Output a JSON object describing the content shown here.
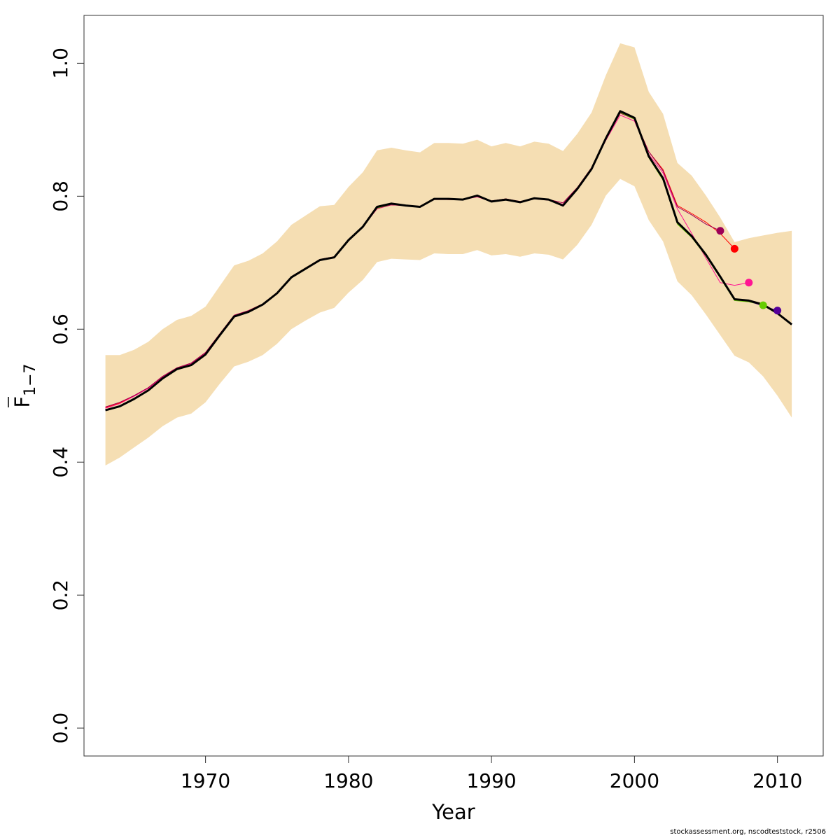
{
  "chart_data": {
    "type": "line",
    "title": "",
    "xlabel": "Year",
    "ylabel": "F",
    "ylabel_subscript": "1−7",
    "xlim": [
      1961.5,
      2013.2
    ],
    "ylim": [
      -0.042,
      1.072
    ],
    "xticks": [
      1970,
      1980,
      1990,
      2000,
      2010
    ],
    "yticks": [
      0.0,
      0.2,
      0.4,
      0.6,
      0.8,
      1.0
    ],
    "xtick_labels": [
      "1970",
      "1980",
      "1990",
      "2000",
      "2010"
    ],
    "ytick_labels": [
      "0.0",
      "0.2",
      "0.4",
      "0.6",
      "0.8",
      "1.0"
    ],
    "grid": false,
    "legend": "none",
    "band_color": "#f5deb3",
    "confidence_band": {
      "x": [
        1963,
        1964,
        1965,
        1966,
        1967,
        1968,
        1969,
        1970,
        1971,
        1972,
        1973,
        1974,
        1975,
        1976,
        1977,
        1978,
        1979,
        1980,
        1981,
        1982,
        1983,
        1984,
        1985,
        1986,
        1987,
        1988,
        1989,
        1990,
        1991,
        1992,
        1993,
        1994,
        1995,
        1996,
        1997,
        1998,
        1999,
        2000,
        2001,
        2002,
        2003,
        2004,
        2005,
        2006,
        2007,
        2008,
        2009,
        2010,
        2011
      ],
      "upper": [
        0.561,
        0.561,
        0.569,
        0.581,
        0.6,
        0.614,
        0.62,
        0.634,
        0.665,
        0.696,
        0.703,
        0.714,
        0.732,
        0.757,
        0.771,
        0.785,
        0.787,
        0.814,
        0.836,
        0.869,
        0.873,
        0.869,
        0.866,
        0.88,
        0.88,
        0.879,
        0.885,
        0.875,
        0.88,
        0.875,
        0.882,
        0.879,
        0.868,
        0.894,
        0.926,
        0.982,
        1.03,
        1.024,
        0.957,
        0.924,
        0.85,
        0.831,
        0.801,
        0.768,
        0.731,
        0.737,
        0.741,
        0.745,
        0.748
      ],
      "lower": [
        0.395,
        0.407,
        0.422,
        0.437,
        0.454,
        0.467,
        0.473,
        0.49,
        0.518,
        0.544,
        0.551,
        0.561,
        0.578,
        0.6,
        0.613,
        0.625,
        0.632,
        0.655,
        0.674,
        0.701,
        0.706,
        0.705,
        0.704,
        0.714,
        0.713,
        0.713,
        0.719,
        0.711,
        0.713,
        0.709,
        0.714,
        0.712,
        0.705,
        0.727,
        0.757,
        0.801,
        0.826,
        0.815,
        0.764,
        0.732,
        0.672,
        0.651,
        0.622,
        0.591,
        0.56,
        0.55,
        0.529,
        0.5,
        0.467
      ]
    },
    "series": [
      {
        "color": "#ff1493",
        "width": 1,
        "x": [
          1963,
          1964,
          1965,
          1966,
          1967,
          1968,
          1969,
          1970,
          1971,
          1972,
          1973,
          1974,
          1975,
          1976,
          1977,
          1978,
          1979,
          1980,
          1981,
          1982,
          1983,
          1984,
          1985,
          1986,
          1987,
          1988,
          1989,
          1990,
          1991,
          1992,
          1993,
          1994,
          1995,
          1996,
          1997,
          1998,
          1999,
          2000,
          2001,
          2002,
          2003,
          2004,
          2005,
          2006,
          2007,
          2008
        ],
        "y": [
          0.481,
          0.488,
          0.499,
          0.511,
          0.528,
          0.541,
          0.548,
          0.564,
          0.592,
          0.62,
          0.627,
          0.637,
          0.655,
          0.678,
          0.691,
          0.704,
          0.708,
          0.733,
          0.754,
          0.781,
          0.787,
          0.786,
          0.784,
          0.795,
          0.795,
          0.795,
          0.799,
          0.792,
          0.795,
          0.791,
          0.796,
          0.794,
          0.788,
          0.812,
          0.842,
          0.884,
          0.922,
          0.913,
          0.863,
          0.835,
          0.781,
          0.744,
          0.707,
          0.67,
          0.666,
          0.67
        ],
        "end_point": {
          "x": 2008,
          "y": 0.67
        }
      },
      {
        "color": "#ff0000",
        "width": 1,
        "x": [
          1963,
          1964,
          1965,
          1966,
          1967,
          1968,
          1969,
          1970,
          1971,
          1972,
          1973,
          1974,
          1975,
          1976,
          1977,
          1978,
          1979,
          1980,
          1981,
          1982,
          1983,
          1984,
          1985,
          1986,
          1987,
          1988,
          1989,
          1990,
          1991,
          1992,
          1993,
          1994,
          1995,
          1996,
          1997,
          1998,
          1999,
          2000,
          2001,
          2002,
          2003,
          2004,
          2005,
          2006,
          2007
        ],
        "y": [
          0.482,
          0.489,
          0.5,
          0.512,
          0.529,
          0.542,
          0.549,
          0.565,
          0.593,
          0.621,
          0.628,
          0.638,
          0.655,
          0.679,
          0.692,
          0.705,
          0.709,
          0.734,
          0.755,
          0.782,
          0.787,
          0.786,
          0.785,
          0.796,
          0.795,
          0.795,
          0.8,
          0.793,
          0.796,
          0.792,
          0.797,
          0.795,
          0.79,
          0.813,
          0.843,
          0.886,
          0.925,
          0.916,
          0.867,
          0.84,
          0.786,
          0.774,
          0.761,
          0.744,
          0.721
        ],
        "end_point": {
          "x": 2007,
          "y": 0.721
        }
      },
      {
        "color": "#9c0057",
        "width": 1,
        "x": [
          1963,
          1964,
          1965,
          1966,
          1967,
          1968,
          1969,
          1970,
          1971,
          1972,
          1973,
          1974,
          1975,
          1976,
          1977,
          1978,
          1979,
          1980,
          1981,
          1982,
          1983,
          1984,
          1985,
          1986,
          1987,
          1988,
          1989,
          1990,
          1991,
          1992,
          1993,
          1994,
          1995,
          1996,
          1997,
          1998,
          1999,
          2000,
          2001,
          2002,
          2003,
          2004,
          2005,
          2006
        ],
        "y": [
          0.483,
          0.49,
          0.5,
          0.512,
          0.529,
          0.542,
          0.549,
          0.565,
          0.593,
          0.621,
          0.628,
          0.638,
          0.655,
          0.679,
          0.692,
          0.705,
          0.709,
          0.734,
          0.755,
          0.782,
          0.787,
          0.786,
          0.785,
          0.796,
          0.795,
          0.795,
          0.8,
          0.793,
          0.796,
          0.792,
          0.797,
          0.795,
          0.79,
          0.813,
          0.843,
          0.886,
          0.925,
          0.916,
          0.867,
          0.838,
          0.784,
          0.772,
          0.758,
          0.748
        ],
        "end_point": {
          "x": 2006,
          "y": 0.748
        }
      },
      {
        "color": "#66cc00",
        "width": 1,
        "x": [
          1963,
          1964,
          1965,
          1966,
          1967,
          1968,
          1969,
          1970,
          1971,
          1972,
          1973,
          1974,
          1975,
          1976,
          1977,
          1978,
          1979,
          1980,
          1981,
          1982,
          1983,
          1984,
          1985,
          1986,
          1987,
          1988,
          1989,
          1990,
          1991,
          1992,
          1993,
          1994,
          1995,
          1996,
          1997,
          1998,
          1999,
          2000,
          2001,
          2002,
          2003,
          2004,
          2005,
          2006,
          2007,
          2008,
          2009
        ],
        "y": [
          0.478,
          0.484,
          0.495,
          0.508,
          0.526,
          0.54,
          0.546,
          0.562,
          0.591,
          0.619,
          0.626,
          0.637,
          0.654,
          0.678,
          0.691,
          0.704,
          0.708,
          0.734,
          0.754,
          0.782,
          0.788,
          0.786,
          0.784,
          0.796,
          0.796,
          0.795,
          0.801,
          0.792,
          0.795,
          0.791,
          0.797,
          0.795,
          0.787,
          0.811,
          0.841,
          0.887,
          0.926,
          0.916,
          0.858,
          0.824,
          0.758,
          0.738,
          0.71,
          0.677,
          0.643,
          0.641,
          0.636
        ],
        "end_point": {
          "x": 2009,
          "y": 0.636
        }
      },
      {
        "color": "#550099",
        "width": 1,
        "x": [
          1963,
          1964,
          1965,
          1966,
          1967,
          1968,
          1969,
          1970,
          1971,
          1972,
          1973,
          1974,
          1975,
          1976,
          1977,
          1978,
          1979,
          1980,
          1981,
          1982,
          1983,
          1984,
          1985,
          1986,
          1987,
          1988,
          1989,
          1990,
          1991,
          1992,
          1993,
          1994,
          1995,
          1996,
          1997,
          1998,
          1999,
          2000,
          2001,
          2002,
          2003,
          2004,
          2005,
          2006,
          2007,
          2008,
          2009,
          2010
        ],
        "y": [
          0.478,
          0.484,
          0.495,
          0.508,
          0.526,
          0.54,
          0.546,
          0.562,
          0.591,
          0.619,
          0.626,
          0.637,
          0.654,
          0.678,
          0.691,
          0.704,
          0.708,
          0.734,
          0.754,
          0.783,
          0.788,
          0.786,
          0.784,
          0.796,
          0.796,
          0.795,
          0.801,
          0.792,
          0.795,
          0.791,
          0.797,
          0.795,
          0.786,
          0.811,
          0.841,
          0.887,
          0.927,
          0.917,
          0.859,
          0.826,
          0.76,
          0.739,
          0.711,
          0.678,
          0.645,
          0.642,
          0.635,
          0.628
        ],
        "end_point": {
          "x": 2010,
          "y": 0.628
        }
      },
      {
        "color": "#000000",
        "width": 3,
        "x": [
          1963,
          1964,
          1965,
          1966,
          1967,
          1968,
          1969,
          1970,
          1971,
          1972,
          1973,
          1974,
          1975,
          1976,
          1977,
          1978,
          1979,
          1980,
          1981,
          1982,
          1983,
          1984,
          1985,
          1986,
          1987,
          1988,
          1989,
          1990,
          1991,
          1992,
          1993,
          1994,
          1995,
          1996,
          1997,
          1998,
          1999,
          2000,
          2001,
          2002,
          2003,
          2004,
          2005,
          2006,
          2007,
          2008,
          2009,
          2010,
          2011
        ],
        "y": [
          0.478,
          0.484,
          0.495,
          0.508,
          0.526,
          0.54,
          0.546,
          0.562,
          0.591,
          0.619,
          0.626,
          0.637,
          0.654,
          0.678,
          0.691,
          0.704,
          0.708,
          0.734,
          0.754,
          0.784,
          0.789,
          0.786,
          0.784,
          0.796,
          0.796,
          0.795,
          0.801,
          0.792,
          0.795,
          0.791,
          0.797,
          0.795,
          0.786,
          0.811,
          0.841,
          0.887,
          0.928,
          0.918,
          0.86,
          0.827,
          0.761,
          0.74,
          0.712,
          0.679,
          0.645,
          0.643,
          0.637,
          0.624,
          0.607
        ]
      }
    ]
  },
  "footer": {
    "note": "stockassessment.org, nscodteststock, r2506"
  }
}
